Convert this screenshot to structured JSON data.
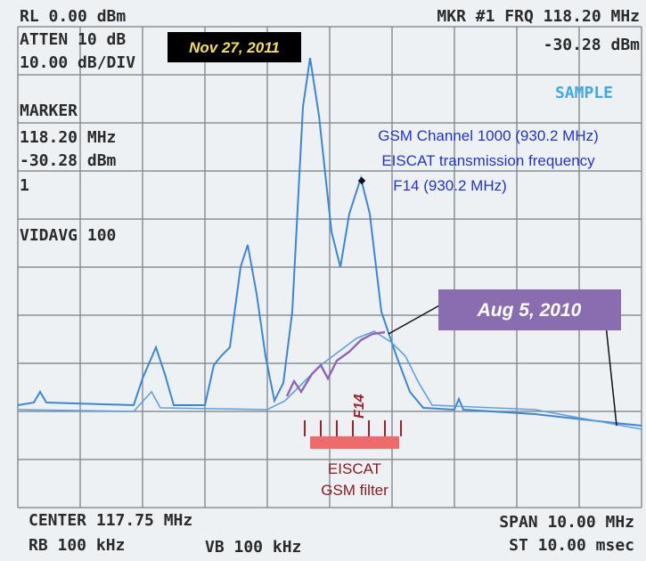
{
  "screen": {
    "top_left": [
      "RL 0.00 dBm",
      "ATTEN 10 dB",
      "10.00 dB/DIV"
    ],
    "top_right": [
      "MKR #1 FRQ 118.20 MHz",
      "-30.28 dBm"
    ],
    "mode": "SAMPLE",
    "marker": [
      "MARKER",
      "118.20 MHz",
      "-30.28 dBm",
      "1"
    ],
    "video_avg": "VIDAVG 100",
    "bottom_left": [
      "CENTER 117.75 MHz",
      "RB 100 kHz",
      "VB 100 kHz"
    ],
    "bottom_right": [
      "SPAN 10.00 MHz",
      "ST 10.00 msec"
    ]
  },
  "annotations": {
    "date_new": "Nov 27, 2011",
    "date_old": "Aug 5, 2010",
    "gsm_note": [
      "GSM Channel 1000 (930.2 MHz)",
      "EISCAT transmission frequency",
      "F14 (930.2 MHz)"
    ],
    "f14": "F14",
    "filter": [
      "EISCAT",
      "GSM filter"
    ]
  }
}
